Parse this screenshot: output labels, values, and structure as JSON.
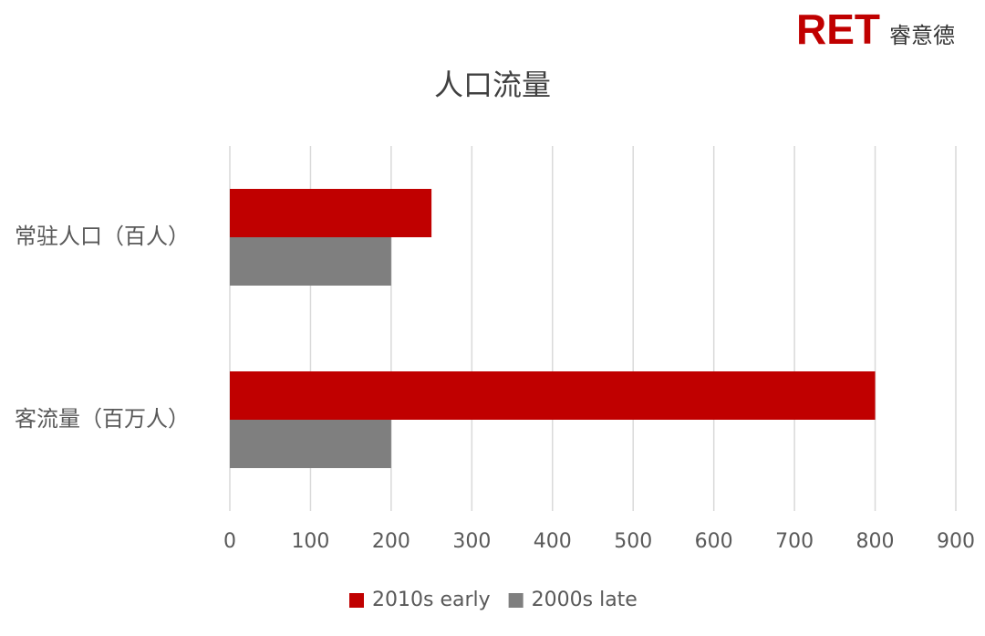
{
  "logo": {
    "brand": "RET",
    "name": "睿意德"
  },
  "chart_data": {
    "type": "hbar",
    "title": "人口流量",
    "categories": [
      "常驻人口（百人）",
      "客流量（百万人）"
    ],
    "series": [
      {
        "name": "2010s early",
        "color": "#c00000",
        "values": [
          250,
          800
        ]
      },
      {
        "name": "2000s late",
        "color": "#7f7f7f",
        "values": [
          200,
          200
        ]
      }
    ],
    "xlim": [
      0,
      900
    ],
    "xticks": [
      0,
      100,
      200,
      300,
      400,
      500,
      600,
      700,
      800,
      900
    ],
    "grid": true,
    "legend": "bottom"
  }
}
